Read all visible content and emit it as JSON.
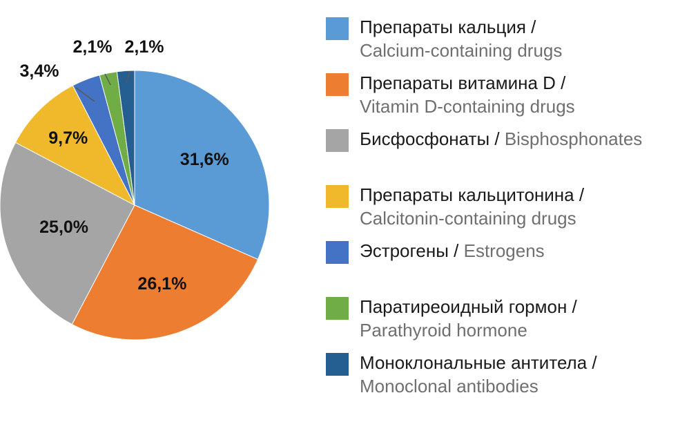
{
  "chart_data": {
    "type": "pie",
    "slices": [
      {
        "label": "31,6%",
        "value": 31.6,
        "color": "#5B9BD5",
        "ru": "Препараты кальция /",
        "en": "Calcium-containing drugs",
        "inline": false
      },
      {
        "label": "26,1%",
        "value": 26.1,
        "color": "#ED7D31",
        "ru": "Препараты витамина D /",
        "en": "Vitamin D-containing drugs",
        "inline": false
      },
      {
        "label": "25,0%",
        "value": 25.0,
        "color": "#A5A5A5",
        "ru": "Бисфосфонаты / ",
        "en": "Bisphosphonates",
        "inline": true
      },
      {
        "label": "9,7%",
        "value": 9.7,
        "color": "#F0B92C",
        "ru": "Препараты кальцитонина /",
        "en": "Calcitonin-containing drugs",
        "inline": false
      },
      {
        "label": "3,4%",
        "value": 3.4,
        "color": "#4472C4",
        "ru": "Эстрогены / ",
        "en": "Estrogens",
        "inline": true
      },
      {
        "label": "2,1%",
        "value": 2.1,
        "color": "#70AD47",
        "ru": "Паратиреоидный гормон /",
        "en": "Parathyroid hormone",
        "inline": false
      },
      {
        "label": "2,1%",
        "value": 2.1,
        "color": "#255E91",
        "ru": "Моноклональные антитела /",
        "en": "Monoclonal antibodies",
        "inline": false
      }
    ]
  }
}
